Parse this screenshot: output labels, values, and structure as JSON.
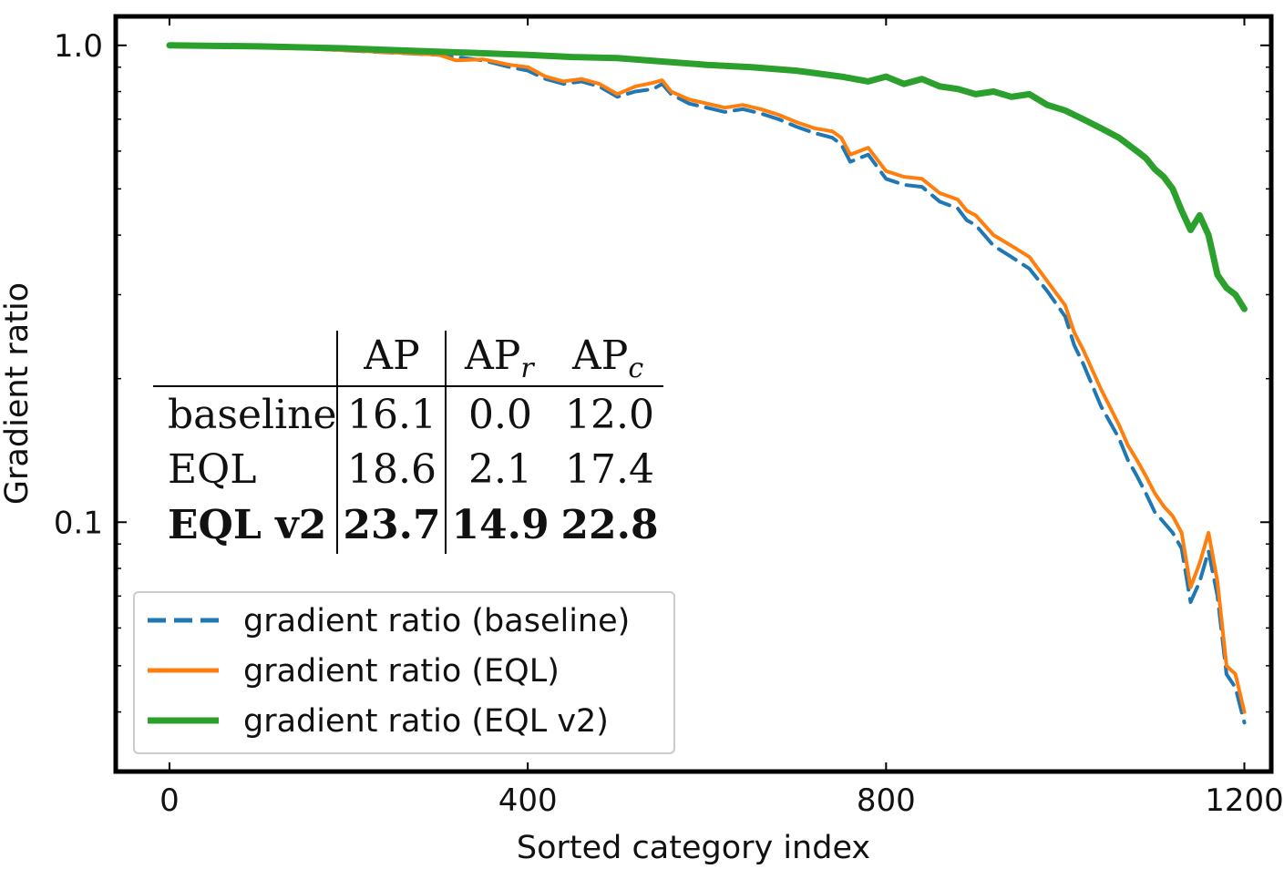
{
  "chart_data": {
    "type": "line",
    "xlabel": "Sorted category index",
    "ylabel": "Gradient ratio",
    "xlim": [
      -60,
      1230
    ],
    "ylim": [
      0.03,
      1.15
    ],
    "yscale": "log",
    "xticks": [
      0,
      400,
      800,
      1200
    ],
    "yticks": [
      1.0,
      0.1
    ],
    "xtick_labels": [
      "0",
      "400",
      "800",
      "1200"
    ],
    "ytick_labels": [
      "1.0",
      "0.1"
    ],
    "grid": false,
    "legend_position": "lower-left",
    "series": [
      {
        "name": "gradient ratio (baseline)",
        "color": "#1f77b4",
        "style": "dashed",
        "points": [
          [
            0,
            1.0
          ],
          [
            50,
            0.995
          ],
          [
            100,
            0.99
          ],
          [
            150,
            0.985
          ],
          [
            200,
            0.975
          ],
          [
            250,
            0.965
          ],
          [
            300,
            0.955
          ],
          [
            350,
            0.93
          ],
          [
            380,
            0.9
          ],
          [
            400,
            0.885
          ],
          [
            420,
            0.85
          ],
          [
            440,
            0.83
          ],
          [
            460,
            0.84
          ],
          [
            480,
            0.82
          ],
          [
            500,
            0.78
          ],
          [
            520,
            0.8
          ],
          [
            540,
            0.81
          ],
          [
            550,
            0.83
          ],
          [
            560,
            0.79
          ],
          [
            580,
            0.755
          ],
          [
            600,
            0.74
          ],
          [
            620,
            0.725
          ],
          [
            640,
            0.735
          ],
          [
            660,
            0.72
          ],
          [
            680,
            0.7
          ],
          [
            700,
            0.675
          ],
          [
            720,
            0.655
          ],
          [
            740,
            0.64
          ],
          [
            750,
            0.62
          ],
          [
            760,
            0.57
          ],
          [
            780,
            0.59
          ],
          [
            800,
            0.525
          ],
          [
            820,
            0.51
          ],
          [
            840,
            0.505
          ],
          [
            860,
            0.47
          ],
          [
            880,
            0.455
          ],
          [
            890,
            0.43
          ],
          [
            900,
            0.42
          ],
          [
            920,
            0.38
          ],
          [
            940,
            0.36
          ],
          [
            960,
            0.34
          ],
          [
            980,
            0.305
          ],
          [
            1000,
            0.27
          ],
          [
            1010,
            0.235
          ],
          [
            1020,
            0.215
          ],
          [
            1040,
            0.175
          ],
          [
            1060,
            0.15
          ],
          [
            1070,
            0.135
          ],
          [
            1080,
            0.125
          ],
          [
            1090,
            0.115
          ],
          [
            1100,
            0.105
          ],
          [
            1110,
            0.1
          ],
          [
            1120,
            0.095
          ],
          [
            1130,
            0.088
          ],
          [
            1140,
            0.068
          ],
          [
            1150,
            0.075
          ],
          [
            1160,
            0.087
          ],
          [
            1170,
            0.07
          ],
          [
            1180,
            0.048
          ],
          [
            1190,
            0.045
          ],
          [
            1200,
            0.038
          ]
        ]
      },
      {
        "name": "gradient ratio (EQL)",
        "color": "#ff7f0e",
        "style": "solid",
        "points": [
          [
            0,
            1.0
          ],
          [
            50,
            0.995
          ],
          [
            100,
            0.99
          ],
          [
            150,
            0.985
          ],
          [
            200,
            0.976
          ],
          [
            250,
            0.966
          ],
          [
            300,
            0.956
          ],
          [
            320,
            0.93
          ],
          [
            350,
            0.935
          ],
          [
            380,
            0.91
          ],
          [
            400,
            0.9
          ],
          [
            420,
            0.86
          ],
          [
            440,
            0.84
          ],
          [
            460,
            0.85
          ],
          [
            480,
            0.83
          ],
          [
            500,
            0.79
          ],
          [
            520,
            0.82
          ],
          [
            540,
            0.835
          ],
          [
            550,
            0.845
          ],
          [
            560,
            0.8
          ],
          [
            580,
            0.77
          ],
          [
            600,
            0.755
          ],
          [
            620,
            0.74
          ],
          [
            640,
            0.75
          ],
          [
            660,
            0.735
          ],
          [
            680,
            0.715
          ],
          [
            700,
            0.69
          ],
          [
            720,
            0.67
          ],
          [
            740,
            0.66
          ],
          [
            750,
            0.64
          ],
          [
            760,
            0.59
          ],
          [
            780,
            0.61
          ],
          [
            800,
            0.545
          ],
          [
            820,
            0.53
          ],
          [
            840,
            0.525
          ],
          [
            860,
            0.49
          ],
          [
            880,
            0.475
          ],
          [
            890,
            0.45
          ],
          [
            900,
            0.44
          ],
          [
            920,
            0.4
          ],
          [
            940,
            0.38
          ],
          [
            960,
            0.36
          ],
          [
            980,
            0.32
          ],
          [
            1000,
            0.285
          ],
          [
            1010,
            0.25
          ],
          [
            1020,
            0.23
          ],
          [
            1040,
            0.19
          ],
          [
            1060,
            0.16
          ],
          [
            1070,
            0.145
          ],
          [
            1080,
            0.135
          ],
          [
            1090,
            0.125
          ],
          [
            1100,
            0.115
          ],
          [
            1110,
            0.108
          ],
          [
            1120,
            0.103
          ],
          [
            1130,
            0.095
          ],
          [
            1140,
            0.073
          ],
          [
            1150,
            0.082
          ],
          [
            1160,
            0.095
          ],
          [
            1170,
            0.075
          ],
          [
            1180,
            0.05
          ],
          [
            1190,
            0.048
          ],
          [
            1200,
            0.04
          ]
        ]
      },
      {
        "name": "gradient ratio (EQL v2)",
        "color": "#2ca02c",
        "style": "solid",
        "points": [
          [
            0,
            1.0
          ],
          [
            100,
            0.995
          ],
          [
            200,
            0.985
          ],
          [
            300,
            0.97
          ],
          [
            400,
            0.955
          ],
          [
            450,
            0.945
          ],
          [
            500,
            0.94
          ],
          [
            550,
            0.925
          ],
          [
            600,
            0.91
          ],
          [
            650,
            0.9
          ],
          [
            700,
            0.885
          ],
          [
            750,
            0.86
          ],
          [
            780,
            0.84
          ],
          [
            800,
            0.86
          ],
          [
            820,
            0.83
          ],
          [
            840,
            0.85
          ],
          [
            860,
            0.82
          ],
          [
            880,
            0.81
          ],
          [
            900,
            0.79
          ],
          [
            920,
            0.8
          ],
          [
            940,
            0.78
          ],
          [
            960,
            0.79
          ],
          [
            980,
            0.75
          ],
          [
            1000,
            0.73
          ],
          [
            1020,
            0.7
          ],
          [
            1040,
            0.67
          ],
          [
            1060,
            0.64
          ],
          [
            1080,
            0.6
          ],
          [
            1090,
            0.58
          ],
          [
            1100,
            0.55
          ],
          [
            1110,
            0.53
          ],
          [
            1120,
            0.5
          ],
          [
            1130,
            0.45
          ],
          [
            1140,
            0.41
          ],
          [
            1150,
            0.44
          ],
          [
            1160,
            0.4
          ],
          [
            1170,
            0.33
          ],
          [
            1180,
            0.31
          ],
          [
            1190,
            0.3
          ],
          [
            1200,
            0.28
          ]
        ]
      }
    ],
    "table": {
      "headers": [
        "",
        "AP",
        "AP",
        "AP"
      ],
      "header_subscripts": [
        "",
        "",
        "r",
        "c"
      ],
      "rows": [
        {
          "label": "baseline",
          "values": [
            "16.1",
            "0.0",
            "12.0"
          ],
          "bold": false
        },
        {
          "label": "EQL",
          "values": [
            "18.6",
            "2.1",
            "17.4"
          ],
          "bold": false
        },
        {
          "label": "EQL v2",
          "values": [
            "23.7",
            "14.9",
            "22.8"
          ],
          "bold": true
        }
      ]
    }
  }
}
